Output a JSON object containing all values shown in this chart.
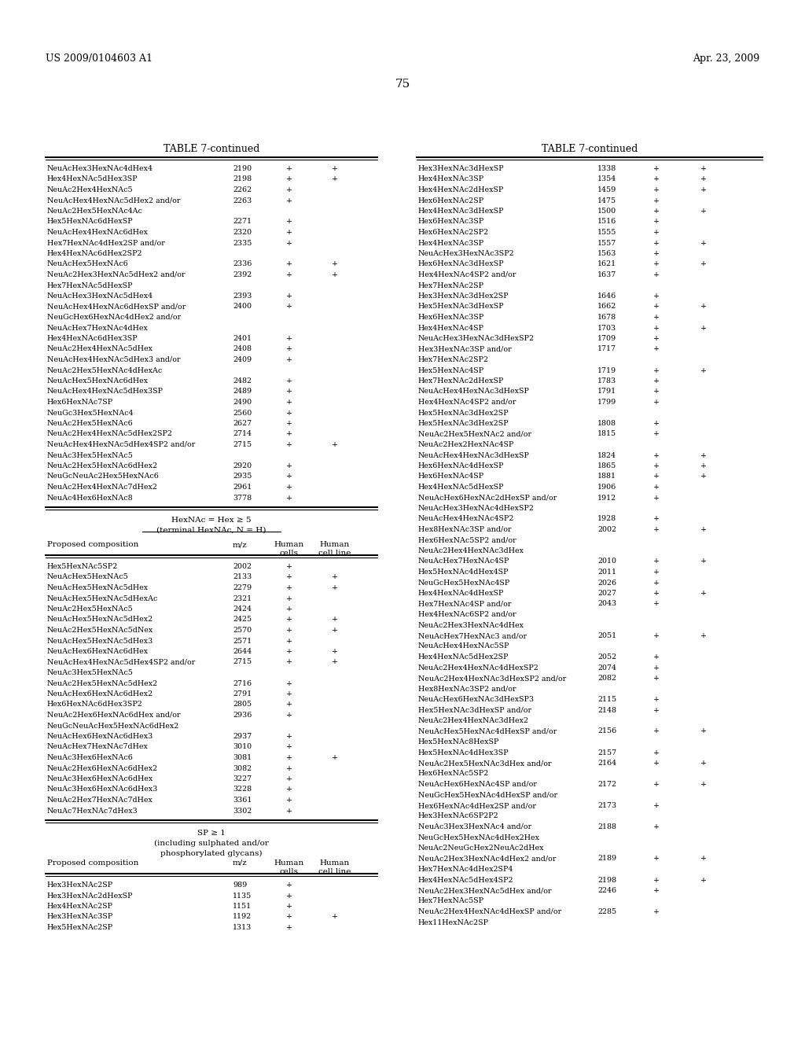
{
  "header_left": "US 2009/0104603 A1",
  "header_right": "Apr. 23, 2009",
  "page_number": "75",
  "table_title": "TABLE 7-continued",
  "bg_color": "#ffffff",
  "left_col": {
    "section1_rows": [
      [
        "NeuAcHex3HexNAc4dHex4",
        "2190",
        "+",
        "+"
      ],
      [
        "Hex4HexNAc5dHex3SP",
        "2198",
        "+",
        "+"
      ],
      [
        "NeuAc2Hex4HexNAc5",
        "2262",
        "+",
        ""
      ],
      [
        "NeuAcHex4HexNAc5dHex2 and/or",
        "2263",
        "+",
        ""
      ],
      [
        "NeuAc2Hex5HexNAc4Ac",
        "",
        "",
        ""
      ],
      [
        "Hex5HexNAc6dHexSP",
        "2271",
        "+",
        ""
      ],
      [
        "NeuAcHex4HexNAc6dHex",
        "2320",
        "+",
        ""
      ],
      [
        "Hex7HexNAc4dHex2SP and/or",
        "2335",
        "+",
        ""
      ],
      [
        "Hex4HexNAc6dHex2SP2",
        "",
        "",
        ""
      ],
      [
        "NeuAcHex5HexNAc6",
        "2336",
        "+",
        "+"
      ],
      [
        "NeuAc2Hex3HexNAc5dHex2 and/or",
        "2392",
        "+",
        "+"
      ],
      [
        "Hex7HexNAc5dHexSP",
        "",
        "",
        ""
      ],
      [
        "NeuAcHex3HexNAc5dHex4",
        "2393",
        "+",
        ""
      ],
      [
        "NeuAcHex4HexNAc6dHexSP and/or",
        "2400",
        "+",
        ""
      ],
      [
        "NeuGcHex6HexNAc4dHex2 and/or",
        "",
        "",
        ""
      ],
      [
        "NeuAcHex7HexNAc4dHex",
        "",
        "",
        ""
      ],
      [
        "Hex4HexNAc6dHex3SP",
        "2401",
        "+",
        ""
      ],
      [
        "NeuAc2Hex4HexNAc5dHex",
        "2408",
        "+",
        ""
      ],
      [
        "NeuAcHex4HexNAc5dHex3 and/or",
        "2409",
        "+",
        ""
      ],
      [
        "NeuAc2Hex5HexNAc4dHexAc",
        "",
        "",
        ""
      ],
      [
        "NeuAcHex5HexNAc6dHex",
        "2482",
        "+",
        ""
      ],
      [
        "NeuAcHex4HexNAc5dHex3SP",
        "2489",
        "+",
        ""
      ],
      [
        "Hex6HexNAc7SP",
        "2490",
        "+",
        ""
      ],
      [
        "NeuGc3Hex5HexNAc4",
        "2560",
        "+",
        ""
      ],
      [
        "NeuAc2Hex5HexNAc6",
        "2627",
        "+",
        ""
      ],
      [
        "NeuAc2Hex4HexNAc5dHex2SP2",
        "2714",
        "+",
        ""
      ],
      [
        "NeuAcHex4HexNAc5dHex4SP2 and/or",
        "2715",
        "+",
        "+"
      ],
      [
        "NeuAc3Hex5HexNAc5",
        "",
        "",
        ""
      ],
      [
        "NeuAc2Hex5HexNAc6dHex2",
        "2920",
        "+",
        ""
      ],
      [
        "NeuGcNeuAc2Hex5HexNAc6",
        "2935",
        "+",
        ""
      ],
      [
        "NeuAc2Hex4HexNAc7dHex2",
        "2961",
        "+",
        ""
      ],
      [
        "NeuAc4Hex6HexNAc8",
        "3778",
        "+",
        ""
      ]
    ],
    "section2_title1": "HexNAc = Hex ≥ 5",
    "section2_title2": "(terminal HexNAc, N = H)",
    "section2_rows": [
      [
        "Hex5HexNAc5SP2",
        "2002",
        "+",
        ""
      ],
      [
        "NeuAcHex5HexNAc5",
        "2133",
        "+",
        "+"
      ],
      [
        "NeuAcHex5HexNAc5dHex",
        "2279",
        "+",
        "+"
      ],
      [
        "NeuAcHex5HexNAc5dHexAc",
        "2321",
        "+",
        ""
      ],
      [
        "NeuAc2Hex5HexNAc5",
        "2424",
        "+",
        ""
      ],
      [
        "NeuAcHex5HexNAc5dHex2",
        "2425",
        "+",
        "+"
      ],
      [
        "NeuAc2Hex5HexNAc5dNex",
        "2570",
        "+",
        "+"
      ],
      [
        "NeuAcHex5HexNAc5dHex3",
        "2571",
        "+",
        ""
      ],
      [
        "NeuAcHex6HexNAc6dHex",
        "2644",
        "+",
        "+"
      ],
      [
        "NeuAcHex4HexNAc5dHex4SP2 and/or",
        "2715",
        "+",
        "+"
      ],
      [
        "NeuAc3Hex5HexNAc5",
        "",
        "",
        ""
      ],
      [
        "NeuAc2Hex5HexNAc5dHex2",
        "2716",
        "+",
        ""
      ],
      [
        "NeuAcHex6HexNAc6dHex2",
        "2791",
        "+",
        ""
      ],
      [
        "Hex6HexNAc6dHex3SP2",
        "2805",
        "+",
        ""
      ],
      [
        "NeuAc2Hex6HexNAc6dHex and/or",
        "2936",
        "+",
        ""
      ],
      [
        "NeuGcNeuAcHex5HexNAc6dHex2",
        "",
        "",
        ""
      ],
      [
        "NeuAcHex6HexNAc6dHex3",
        "2937",
        "+",
        ""
      ],
      [
        "NeuAcHex7HexNAc7dHex",
        "3010",
        "+",
        ""
      ],
      [
        "NeuAc3Hex6HexNAc6",
        "3081",
        "+",
        "+"
      ],
      [
        "NeuAc2Hex6HexNAc6dHex2",
        "3082",
        "+",
        ""
      ],
      [
        "NeuAc3Hex6HexNAc6dHex",
        "3227",
        "+",
        ""
      ],
      [
        "NeuAc3Hex6HexNAc6dHex3",
        "3228",
        "+",
        ""
      ],
      [
        "NeuAc2Hex7HexNAc7dHex",
        "3361",
        "+",
        ""
      ],
      [
        "NeuAc7HexNAc7dHex3",
        "3302",
        "+",
        ""
      ]
    ],
    "section3_title1": "SP ≥ 1",
    "section3_title2": "(including sulphated and/or",
    "section3_title3": "phosphorylated glycans)",
    "section3_rows": [
      [
        "Hex3HexNAc2SP",
        "989",
        "+",
        ""
      ],
      [
        "Hex3HexNAc2dHexSP",
        "1135",
        "+",
        ""
      ],
      [
        "Hex4HexNAc2SP",
        "1151",
        "+",
        ""
      ],
      [
        "Hex3HexNAc3SP",
        "1192",
        "+",
        "+"
      ],
      [
        "Hex5HexNAc2SP",
        "1313",
        "+",
        ""
      ]
    ]
  },
  "right_col": {
    "section1_rows": [
      [
        "Hex3HexNAc3dHexSP",
        "1338",
        "+",
        "+"
      ],
      [
        "Hex4HexNAc3SP",
        "1354",
        "+",
        "+"
      ],
      [
        "Hex4HexNAc2dHexSP",
        "1459",
        "+",
        "+"
      ],
      [
        "Hex6HexNAc2SP",
        "1475",
        "+",
        ""
      ],
      [
        "Hex4HexNAc3dHexSP",
        "1500",
        "+",
        "+"
      ],
      [
        "Hex6HexNAc3SP",
        "1516",
        "+",
        ""
      ],
      [
        "Hex6HexNAc2SP2",
        "1555",
        "+",
        ""
      ],
      [
        "Hex4HexNAc3SP",
        "1557",
        "+",
        "+"
      ],
      [
        "NeuAcHex3HexNAc3SP2",
        "1563",
        "+",
        ""
      ],
      [
        "Hex6HexNAc3dHexSP",
        "1621",
        "+",
        "+"
      ],
      [
        "Hex4HexNAc4SP2 and/or",
        "1637",
        "+",
        ""
      ],
      [
        "Hex7HexNAc2SP",
        "",
        "",
        ""
      ],
      [
        "Hex3HexNAc3dHex2SP",
        "1646",
        "+",
        ""
      ],
      [
        "Hex5HexNAc3dHexSP",
        "1662",
        "+",
        "+"
      ],
      [
        "Hex6HexNAc3SP",
        "1678",
        "+",
        ""
      ],
      [
        "Hex4HexNAc4SP",
        "1703",
        "+",
        "+"
      ],
      [
        "NeuAcHex3HexNAc3dHexSP2",
        "1709",
        "+",
        ""
      ],
      [
        "Hex3HexNAc3SP and/or",
        "1717",
        "+",
        ""
      ],
      [
        "Hex7HexNAc2SP2",
        "",
        "",
        ""
      ],
      [
        "Hex5HexNAc4SP",
        "1719",
        "+",
        "+"
      ],
      [
        "Hex7HexNAc2dHexSP",
        "1783",
        "+",
        ""
      ],
      [
        "NeuAcHex4HexNAc3dHexSP",
        "1791",
        "+",
        ""
      ],
      [
        "Hex4HexNAc4SP2 and/or",
        "1799",
        "+",
        ""
      ],
      [
        "Hex5HexNAc3dHex2SP",
        "",
        "",
        ""
      ],
      [
        "Hex5HexNAc3dHex2SP",
        "1808",
        "+",
        ""
      ],
      [
        "NeuAc2Hex5HexNAc2 and/or",
        "1815",
        "+",
        ""
      ],
      [
        "NeuAc2Hex2HexNAc4SP",
        "",
        "",
        ""
      ],
      [
        "NeuAcHex4HexNAc3dHexSP",
        "1824",
        "+",
        "+"
      ],
      [
        "Hex6HexNAc4dHexSP",
        "1865",
        "+",
        "+"
      ],
      [
        "Hex6HexNAc4SP",
        "1881",
        "+",
        "+"
      ],
      [
        "Hex4HexNAc5dHexSP",
        "1906",
        "+",
        ""
      ],
      [
        "NeuAcHex6HexNAc2dHexSP and/or",
        "1912",
        "+",
        ""
      ],
      [
        "NeuAcHex3HexNAc4dHexSP2",
        "",
        "",
        ""
      ],
      [
        "NeuAcHex4HexNAc4SP2",
        "1928",
        "+",
        ""
      ],
      [
        "Hex8HexNAc3SP and/or",
        "2002",
        "+",
        "+"
      ],
      [
        "Hex6HexNAc5SP2 and/or",
        "",
        "",
        ""
      ],
      [
        "NeuAc2Hex4HexNAc3dHex",
        "",
        "",
        ""
      ],
      [
        "NeuAcHex7HexNAc4SP",
        "2010",
        "+",
        "+"
      ],
      [
        "Hex5HexNAc4dHex4SP",
        "2011",
        "+",
        ""
      ],
      [
        "NeuGcHex5HexNAc4SP",
        "2026",
        "+",
        ""
      ],
      [
        "Hex4HexNAc4dHexSP",
        "2027",
        "+",
        "+"
      ],
      [
        "Hex7HexNAc4SP and/or",
        "2043",
        "+",
        ""
      ],
      [
        "Hex4HexNAc6SP2 and/or",
        "",
        "",
        ""
      ],
      [
        "NeuAc2Hex3HexNAc4dHex",
        "",
        "",
        ""
      ],
      [
        "NeuAcHex7HexNAc3 and/or",
        "2051",
        "+",
        "+"
      ],
      [
        "NeuAcHex4HexNAc5SP",
        "",
        "",
        ""
      ],
      [
        "Hex4HexNAc5dHex2SP",
        "2052",
        "+",
        ""
      ],
      [
        "NeuAc2Hex4HexNAc4dHexSP2",
        "2074",
        "+",
        ""
      ],
      [
        "NeuAc2Hex4HexNAc3dHexSP2 and/or",
        "2082",
        "+",
        ""
      ],
      [
        "Hex8HexNAc3SP2 and/or",
        "",
        "",
        ""
      ],
      [
        "NeuAcHex6HexNAc3dHexSP3",
        "2115",
        "+",
        ""
      ],
      [
        "Hex5HexNAc3dHexSP and/or",
        "2148",
        "+",
        ""
      ],
      [
        "NeuAc2Hex4HexNAc3dHex2",
        "",
        "",
        ""
      ],
      [
        "NeuAcHex5HexNAc4dHexSP and/or",
        "2156",
        "+",
        "+"
      ],
      [
        "Hex5HexNAc8HexSP",
        "",
        "",
        ""
      ],
      [
        "Hex5HexNAc4dHex3SP",
        "2157",
        "+",
        ""
      ],
      [
        "NeuAc2Hex5HexNAc3dHex and/or",
        "2164",
        "+",
        "+"
      ],
      [
        "Hex6HexNAc5SP2",
        "",
        "",
        ""
      ],
      [
        "NeuAcHex6HexNAc4SP and/or",
        "2172",
        "+",
        "+"
      ],
      [
        "NeuGcHex5HexNAc4dHexSP and/or",
        "",
        "",
        ""
      ],
      [
        "Hex6HexNAc4dHex2SP and/or",
        "2173",
        "+",
        ""
      ],
      [
        "Hex3HexNAc6SP2P2",
        "",
        "",
        ""
      ],
      [
        "NeuAc3Hex3HexNAc4 and/or",
        "2188",
        "+",
        ""
      ],
      [
        "NeuGcHex5HexNAc4dHex2Hex",
        "",
        "",
        ""
      ],
      [
        "NeuAc2NeuGcHex2NeuAc2dHex",
        "",
        "",
        ""
      ],
      [
        "NeuAc2Hex3HexNAc4dHex2 and/or",
        "2189",
        "+",
        "+"
      ],
      [
        "Hex7HexNAc4dHex2SP4",
        "",
        "",
        ""
      ],
      [
        "Hex4HexNAc5dHex4SP2",
        "2198",
        "+",
        "+"
      ],
      [
        "NeuAc2Hex3HexNAc5dHex and/or",
        "2246",
        "+",
        ""
      ],
      [
        "Hex7HexNAc5SP",
        "",
        "",
        ""
      ],
      [
        "NeuAc2Hex4HexNAc4dHexSP and/or",
        "2285",
        "+",
        ""
      ],
      [
        "Hex11HexNAc2SP",
        "",
        "",
        ""
      ]
    ]
  }
}
